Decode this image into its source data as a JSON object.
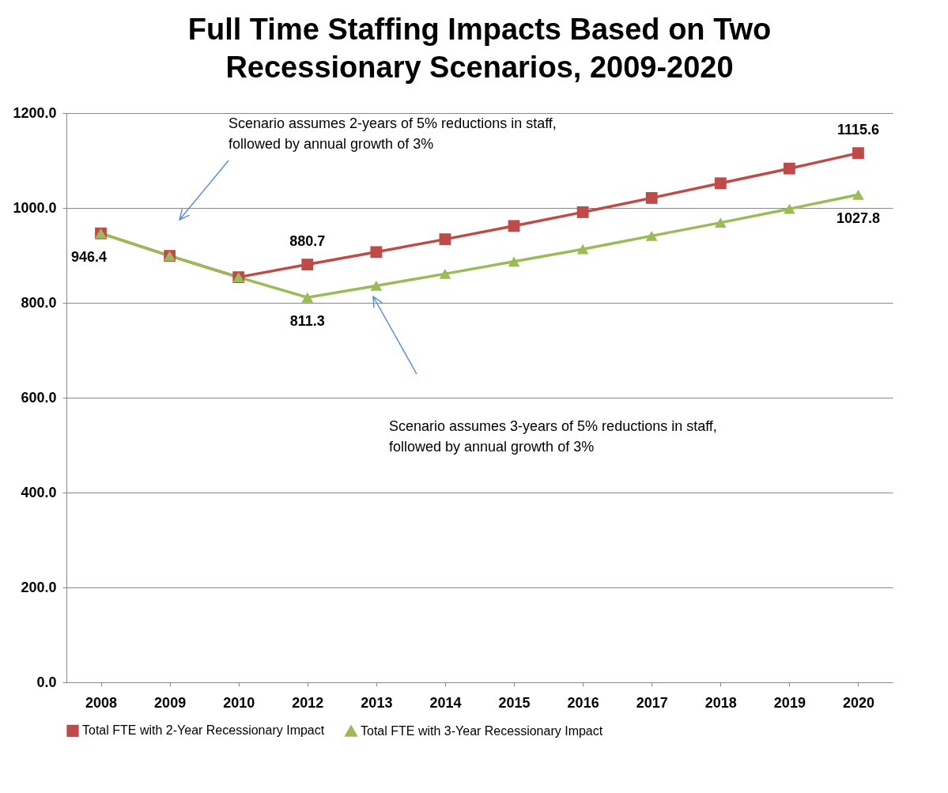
{
  "chart_data": {
    "type": "line",
    "title": "Full Time Staffing Impacts Based on Two\nRecessionary Scenarios, 2009-2020",
    "categories": [
      "2008",
      "2009",
      "2010",
      "2012",
      "2013",
      "2014",
      "2015",
      "2016",
      "2017",
      "2018",
      "2019",
      "2020"
    ],
    "series": [
      {
        "name": "Total FTE with 2-Year Recessionary Impact",
        "color": "#be4b48",
        "marker": "square",
        "values": [
          946.4,
          899,
          854,
          880.7,
          907,
          934,
          962,
          991,
          1021,
          1052,
          1083,
          1115.6
        ],
        "value_labels": [
          null,
          null,
          null,
          "880.7",
          null,
          null,
          null,
          null,
          null,
          null,
          null,
          "1115.6"
        ]
      },
      {
        "name": "Total FTE with 3-Year Recessionary Impact",
        "color": "#9bbb59",
        "marker": "triangle",
        "values": [
          946.4,
          899,
          854,
          811.3,
          836,
          861,
          887,
          913,
          941,
          969,
          998,
          1027.8
        ],
        "value_labels": [
          "946.4",
          null,
          null,
          "811.3",
          null,
          null,
          null,
          null,
          null,
          null,
          null,
          "1027.8"
        ]
      }
    ],
    "ylim": [
      0,
      1200
    ],
    "yticks": [
      {
        "value": 0,
        "label": "0.0"
      },
      {
        "value": 200,
        "label": "200.0"
      },
      {
        "value": 400,
        "label": "400.0"
      },
      {
        "value": 600,
        "label": "600.0"
      },
      {
        "value": 800,
        "label": "800.0"
      },
      {
        "value": 1000,
        "label": "1000.0"
      },
      {
        "value": 1200,
        "label": "1200.0"
      }
    ],
    "grid": "y",
    "legend": "bottom",
    "line_style": "solid",
    "annotations": [
      "Scenario assumes 2-years of 5% reductions in staff,\nfollowed by annual growth of 3%",
      "Scenario assumes 3-years of 5% reductions in staff,\nfollowed by annual growth of 3%"
    ]
  }
}
